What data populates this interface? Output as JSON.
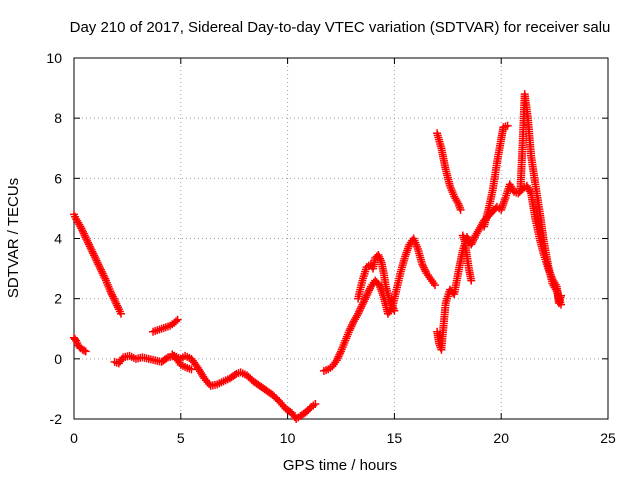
{
  "chart_data": {
    "type": "scatter",
    "title": "Day 210 of 2017, Sidereal Day-to-day VTEC variation (SDTVAR) for receiver salu",
    "xlabel": "GPS time / hours",
    "ylabel": "SDTVAR / TECUs",
    "xlim": [
      0,
      25
    ],
    "ylim": [
      -2,
      10
    ],
    "xticks": [
      0,
      5,
      10,
      15,
      20,
      25
    ],
    "yticks": [
      -2,
      0,
      2,
      4,
      6,
      8,
      10
    ],
    "grid": true,
    "marker": "+",
    "color": "#ff0000",
    "series": [
      {
        "name": "seg1",
        "points": [
          [
            0.0,
            4.8
          ],
          [
            0.1,
            4.65
          ],
          [
            0.3,
            4.4
          ],
          [
            0.5,
            4.1
          ],
          [
            0.7,
            3.8
          ],
          [
            0.9,
            3.5
          ],
          [
            1.1,
            3.2
          ],
          [
            1.3,
            2.9
          ],
          [
            1.5,
            2.6
          ],
          [
            1.7,
            2.25
          ],
          [
            1.9,
            1.95
          ],
          [
            2.1,
            1.65
          ],
          [
            2.2,
            1.5
          ]
        ]
      },
      {
        "name": "seg2",
        "points": [
          [
            0.0,
            0.7
          ],
          [
            0.1,
            0.6
          ],
          [
            0.2,
            0.45
          ],
          [
            0.3,
            0.35
          ],
          [
            0.4,
            0.3
          ],
          [
            0.55,
            0.25
          ]
        ]
      },
      {
        "name": "seg3",
        "points": [
          [
            1.9,
            -0.1
          ],
          [
            2.1,
            -0.15
          ],
          [
            2.3,
            0.05
          ],
          [
            2.6,
            0.1
          ],
          [
            2.9,
            0.0
          ],
          [
            3.2,
            0.05
          ],
          [
            3.5,
            0.0
          ],
          [
            3.8,
            -0.05
          ],
          [
            4.1,
            -0.1
          ],
          [
            4.4,
            0.05
          ],
          [
            4.7,
            0.1
          ],
          [
            5.0,
            0.0
          ],
          [
            5.2,
            0.1
          ],
          [
            5.5,
            0.0
          ],
          [
            5.8,
            -0.3
          ],
          [
            6.1,
            -0.65
          ],
          [
            6.4,
            -0.9
          ],
          [
            6.7,
            -0.85
          ],
          [
            7.0,
            -0.75
          ],
          [
            7.3,
            -0.65
          ],
          [
            7.6,
            -0.5
          ],
          [
            7.8,
            -0.45
          ],
          [
            8.1,
            -0.55
          ],
          [
            8.4,
            -0.75
          ],
          [
            8.7,
            -0.9
          ],
          [
            9.0,
            -1.05
          ],
          [
            9.3,
            -1.2
          ],
          [
            9.6,
            -1.4
          ],
          [
            9.9,
            -1.65
          ],
          [
            10.2,
            -1.8
          ],
          [
            10.4,
            -2.0
          ],
          [
            10.6,
            -1.9
          ],
          [
            10.9,
            -1.75
          ],
          [
            11.1,
            -1.6
          ],
          [
            11.3,
            -1.5
          ]
        ]
      },
      {
        "name": "seg4",
        "points": [
          [
            4.6,
            0.15
          ],
          [
            4.8,
            0.0
          ],
          [
            5.0,
            -0.2
          ],
          [
            5.3,
            -0.3
          ],
          [
            5.5,
            -0.35
          ]
        ]
      },
      {
        "name": "seg5",
        "points": [
          [
            3.7,
            0.9
          ],
          [
            3.9,
            0.95
          ],
          [
            4.1,
            1.0
          ],
          [
            4.3,
            1.05
          ],
          [
            4.5,
            1.1
          ],
          [
            4.7,
            1.2
          ],
          [
            4.85,
            1.3
          ]
        ]
      },
      {
        "name": "seg6",
        "points": [
          [
            11.7,
            -0.4
          ],
          [
            11.9,
            -0.35
          ],
          [
            12.1,
            -0.25
          ],
          [
            12.3,
            -0.05
          ],
          [
            12.5,
            0.25
          ],
          [
            12.7,
            0.6
          ],
          [
            12.9,
            0.95
          ],
          [
            13.1,
            1.25
          ],
          [
            13.3,
            1.5
          ],
          [
            13.5,
            1.8
          ],
          [
            13.7,
            2.1
          ],
          [
            13.9,
            2.4
          ],
          [
            14.1,
            2.6
          ],
          [
            14.3,
            2.45
          ],
          [
            14.5,
            2.05
          ],
          [
            14.7,
            1.5
          ],
          [
            14.9,
            1.7
          ],
          [
            15.1,
            2.3
          ],
          [
            15.3,
            2.9
          ],
          [
            15.5,
            3.4
          ],
          [
            15.7,
            3.8
          ],
          [
            15.9,
            4.0
          ],
          [
            16.1,
            3.65
          ],
          [
            16.3,
            3.15
          ],
          [
            16.5,
            2.85
          ],
          [
            16.7,
            2.65
          ],
          [
            16.9,
            2.45
          ]
        ]
      },
      {
        "name": "seg7",
        "points": [
          [
            13.3,
            2.0
          ],
          [
            13.5,
            2.6
          ],
          [
            13.7,
            3.05
          ],
          [
            13.9,
            3.15
          ],
          [
            14.0,
            3.0
          ],
          [
            14.1,
            3.35
          ],
          [
            14.25,
            3.45
          ],
          [
            14.4,
            3.2
          ],
          [
            14.5,
            2.85
          ],
          [
            14.6,
            2.4
          ],
          [
            14.8,
            1.9
          ],
          [
            15.0,
            1.6
          ]
        ]
      },
      {
        "name": "seg8",
        "points": [
          [
            17.0,
            7.5
          ],
          [
            17.2,
            7.0
          ],
          [
            17.4,
            6.3
          ],
          [
            17.6,
            5.75
          ],
          [
            17.8,
            5.4
          ],
          [
            18.0,
            5.15
          ],
          [
            18.1,
            4.95
          ]
        ]
      },
      {
        "name": "seg9",
        "points": [
          [
            17.0,
            0.9
          ],
          [
            17.1,
            0.5
          ],
          [
            17.2,
            0.3
          ],
          [
            17.3,
            1.1
          ],
          [
            17.4,
            1.85
          ],
          [
            17.6,
            2.3
          ],
          [
            17.8,
            2.15
          ],
          [
            18.0,
            2.9
          ],
          [
            18.2,
            3.6
          ],
          [
            18.4,
            4.05
          ],
          [
            18.6,
            3.8
          ],
          [
            18.8,
            4.1
          ],
          [
            19.0,
            4.35
          ],
          [
            19.2,
            4.6
          ],
          [
            19.4,
            4.75
          ],
          [
            19.6,
            4.9
          ],
          [
            19.8,
            5.05
          ],
          [
            20.0,
            4.95
          ],
          [
            20.2,
            5.35
          ],
          [
            20.4,
            5.8
          ],
          [
            20.6,
            5.55
          ],
          [
            20.8,
            5.5
          ],
          [
            21.0,
            5.65
          ],
          [
            21.2,
            5.75
          ],
          [
            21.4,
            5.5
          ],
          [
            21.6,
            4.65
          ],
          [
            21.8,
            4.0
          ],
          [
            22.0,
            3.45
          ],
          [
            22.2,
            3.0
          ],
          [
            22.4,
            2.65
          ],
          [
            22.6,
            2.4
          ],
          [
            22.7,
            1.85
          ],
          [
            22.8,
            2.1
          ]
        ]
      },
      {
        "name": "seg10",
        "points": [
          [
            18.6,
            2.6
          ],
          [
            18.5,
            2.95
          ],
          [
            18.4,
            3.4
          ],
          [
            18.3,
            3.9
          ],
          [
            18.2,
            4.1
          ]
        ]
      },
      {
        "name": "seg11",
        "points": [
          [
            19.2,
            4.4
          ],
          [
            19.4,
            4.95
          ],
          [
            19.6,
            5.6
          ],
          [
            19.8,
            6.5
          ],
          [
            20.0,
            7.3
          ],
          [
            20.1,
            7.7
          ],
          [
            20.3,
            7.75
          ]
        ]
      },
      {
        "name": "seg12",
        "points": [
          [
            20.9,
            5.6
          ],
          [
            21.0,
            7.1
          ],
          [
            21.1,
            8.8
          ],
          [
            21.25,
            8.0
          ],
          [
            21.4,
            6.75
          ],
          [
            21.6,
            5.8
          ],
          [
            21.8,
            4.9
          ],
          [
            22.0,
            3.9
          ],
          [
            22.2,
            3.1
          ],
          [
            22.4,
            2.5
          ],
          [
            22.6,
            2.25
          ],
          [
            22.8,
            1.8
          ]
        ]
      }
    ]
  }
}
